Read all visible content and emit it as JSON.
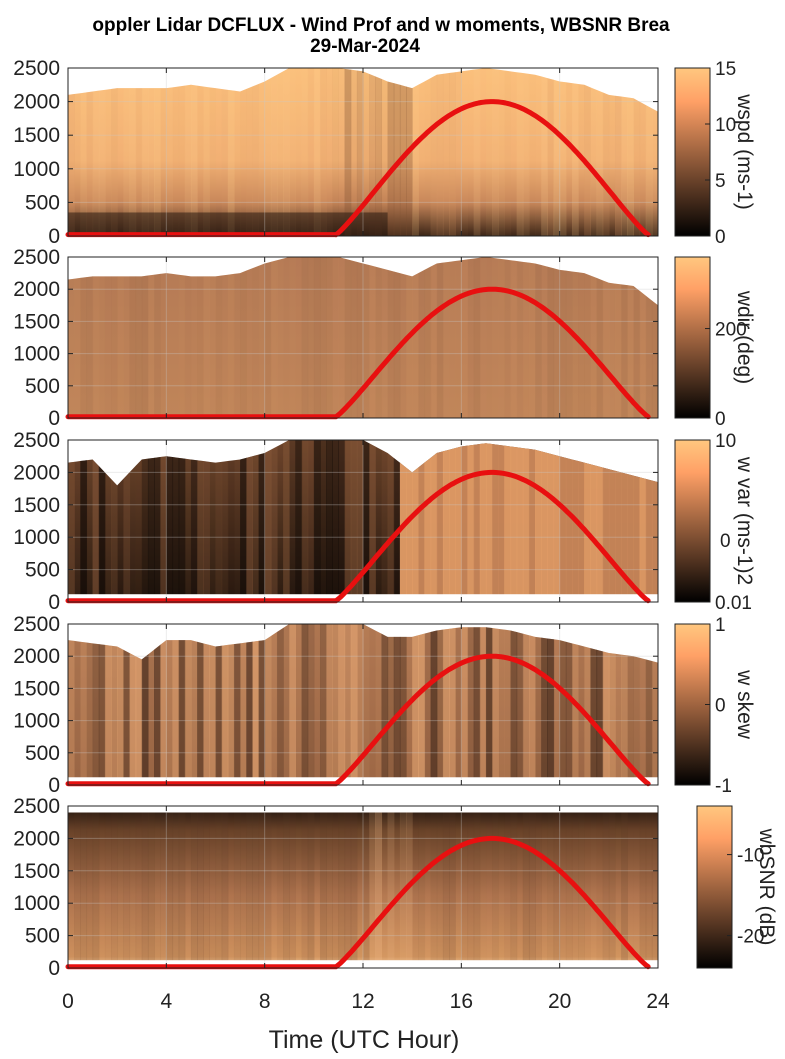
{
  "title": {
    "line1": "oppler Lidar DCFLUX - Wind Prof and w moments, WBSNR Brea",
    "line2": "29-Mar-2024"
  },
  "xlabel": "Time (UTC Hour)",
  "chart_data": {
    "type": "heatmap",
    "x_ticks": [
      "0",
      "4",
      "8",
      "12",
      "16",
      "20",
      "24"
    ],
    "xlim": [
      0,
      24
    ],
    "y_ticks": [
      "0",
      "500",
      "1000",
      "1500",
      "2000",
      "2500"
    ],
    "ylim": [
      0,
      2500
    ],
    "grid": true,
    "colormap": "copper",
    "overlay_curve": {
      "color": "#e81010",
      "description_points": [
        [
          0,
          20
        ],
        [
          10.9,
          20
        ],
        [
          12,
          400
        ],
        [
          14,
          1250
        ],
        [
          16,
          1880
        ],
        [
          17.2,
          2000
        ],
        [
          18,
          1960
        ],
        [
          20,
          1550
        ],
        [
          22,
          700
        ],
        [
          23.6,
          20
        ]
      ]
    },
    "panels": [
      {
        "id": "wspd",
        "colorbar_label": "wspd (ms-1)",
        "colorbar_ticks": [
          "0",
          "5",
          "10",
          "15"
        ],
        "clim": [
          0,
          15
        ],
        "top_profile": [
          [
            0,
            2100
          ],
          [
            1,
            2150
          ],
          [
            2,
            2200
          ],
          [
            3,
            2200
          ],
          [
            4,
            2200
          ],
          [
            5,
            2250
          ],
          [
            6,
            2200
          ],
          [
            7,
            2150
          ],
          [
            8,
            2300
          ],
          [
            9,
            2500
          ],
          [
            10,
            2500
          ],
          [
            11,
            2500
          ],
          [
            12,
            2450
          ],
          [
            13,
            2300
          ],
          [
            14,
            2200
          ],
          [
            15,
            2400
          ],
          [
            16,
            2450
          ],
          [
            17,
            2500
          ],
          [
            18,
            2450
          ],
          [
            19,
            2400
          ],
          [
            20,
            2300
          ],
          [
            21,
            2250
          ],
          [
            22,
            2100
          ],
          [
            23,
            2050
          ],
          [
            24,
            1850
          ]
        ]
      },
      {
        "id": "wdir",
        "colorbar_label": "wdir (deg)",
        "colorbar_ticks": [
          "0",
          "200"
        ],
        "clim": [
          0,
          360
        ],
        "top_profile": [
          [
            0,
            2150
          ],
          [
            1,
            2200
          ],
          [
            2,
            2200
          ],
          [
            3,
            2200
          ],
          [
            4,
            2250
          ],
          [
            5,
            2200
          ],
          [
            6,
            2200
          ],
          [
            7,
            2250
          ],
          [
            8,
            2400
          ],
          [
            9,
            2500
          ],
          [
            10,
            2500
          ],
          [
            11,
            2500
          ],
          [
            12,
            2400
          ],
          [
            13,
            2300
          ],
          [
            14,
            2200
          ],
          [
            15,
            2400
          ],
          [
            16,
            2450
          ],
          [
            17,
            2500
          ],
          [
            18,
            2450
          ],
          [
            19,
            2400
          ],
          [
            20,
            2300
          ],
          [
            21,
            2250
          ],
          [
            22,
            2100
          ],
          [
            23,
            2050
          ],
          [
            24,
            1750
          ]
        ]
      },
      {
        "id": "wvar",
        "colorbar_label": "w var (ms-1)2",
        "colorbar_ticks": [
          "0.01",
          "10"
        ],
        "colorbar_ticks_extra": [
          "0"
        ],
        "scale": "log",
        "top_profile": [
          [
            0,
            2150
          ],
          [
            1,
            2200
          ],
          [
            2,
            1800
          ],
          [
            3,
            2200
          ],
          [
            4,
            2250
          ],
          [
            5,
            2200
          ],
          [
            6,
            2150
          ],
          [
            7,
            2200
          ],
          [
            8,
            2300
          ],
          [
            9,
            2500
          ],
          [
            10,
            2500
          ],
          [
            11,
            2500
          ],
          [
            12,
            2500
          ],
          [
            13,
            2300
          ],
          [
            14,
            2000
          ],
          [
            15,
            2300
          ],
          [
            16,
            2400
          ],
          [
            17,
            2450
          ],
          [
            18,
            2400
          ],
          [
            19,
            2350
          ],
          [
            20,
            2250
          ],
          [
            21,
            2150
          ],
          [
            22,
            2050
          ],
          [
            23,
            1950
          ],
          [
            24,
            1850
          ]
        ]
      },
      {
        "id": "wskew",
        "colorbar_label": "w skew",
        "colorbar_ticks": [
          "-1",
          "0",
          "1"
        ],
        "clim": [
          -1,
          1
        ],
        "top_profile": [
          [
            0,
            2250
          ],
          [
            1,
            2200
          ],
          [
            2,
            2150
          ],
          [
            3,
            1950
          ],
          [
            4,
            2250
          ],
          [
            5,
            2250
          ],
          [
            6,
            2150
          ],
          [
            7,
            2200
          ],
          [
            8,
            2250
          ],
          [
            9,
            2500
          ],
          [
            10,
            2500
          ],
          [
            11,
            2500
          ],
          [
            12,
            2500
          ],
          [
            13,
            2300
          ],
          [
            14,
            2300
          ],
          [
            15,
            2400
          ],
          [
            16,
            2450
          ],
          [
            17,
            2450
          ],
          [
            18,
            2400
          ],
          [
            19,
            2300
          ],
          [
            20,
            2250
          ],
          [
            21,
            2150
          ],
          [
            22,
            2050
          ],
          [
            23,
            2000
          ],
          [
            24,
            1900
          ]
        ]
      },
      {
        "id": "wbsnr",
        "colorbar_label": "wbSNR (dB)",
        "colorbar_ticks": [
          "-20",
          "-10"
        ],
        "top_profile": [
          [
            0,
            2400
          ],
          [
            24,
            2400
          ]
        ]
      }
    ]
  },
  "colors": {
    "curve": "#e81010",
    "axis": "#222222",
    "grid": "#c8c8c8"
  }
}
